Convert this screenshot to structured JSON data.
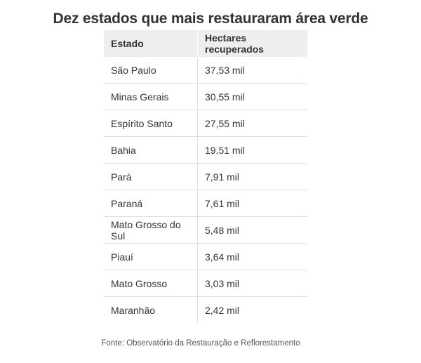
{
  "chart_data": {
    "type": "table",
    "title": "Dez estados que mais restauraram área verde",
    "columns": [
      "Estado",
      "Hectares recuperados"
    ],
    "rows": [
      {
        "estado": "São Paulo",
        "hectares": "37,53 mil"
      },
      {
        "estado": "Minas Gerais",
        "hectares": "30,55 mil"
      },
      {
        "estado": "Espírito Santo",
        "hectares": "27,55 mil"
      },
      {
        "estado": "Bahia",
        "hectares": "19,51 mil"
      },
      {
        "estado": "Pará",
        "hectares": "7,91 mil"
      },
      {
        "estado": "Paraná",
        "hectares": "7,61 mil"
      },
      {
        "estado": "Mato Grosso do Sul",
        "hectares": "5,48 mil"
      },
      {
        "estado": "Piauí",
        "hectares": "3,64 mil"
      },
      {
        "estado": "Mato Grosso",
        "hectares": "3,03 mil"
      },
      {
        "estado": "Maranhão",
        "hectares": "2,42 mil"
      }
    ],
    "values": [
      37.53,
      30.55,
      27.55,
      19.51,
      7.91,
      7.61,
      5.48,
      3.64,
      3.03,
      2.42
    ],
    "source": "Fonte: Observatório da Restauração e Reflorestamento"
  }
}
